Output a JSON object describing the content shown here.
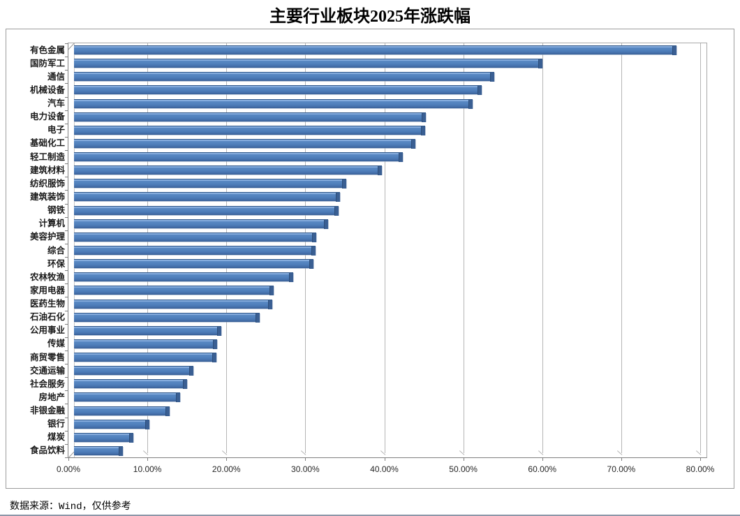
{
  "title": "主要行业板块2025年涨跌幅",
  "source_note": "数据来源：Wind，仅供参考",
  "chart_data": {
    "type": "bar",
    "orientation": "horizontal",
    "title": "主要行业板块2025年涨跌幅",
    "xlabel": "",
    "ylabel": "",
    "xlim": [
      0,
      80
    ],
    "grid": true,
    "legend": "none",
    "style": "excel-3d-bevel",
    "bar_color": "#4F81BD",
    "bar_cap_color": "#3A5F93",
    "gridline_color": "#B5B5B5",
    "x_ticks": [
      "0.00%",
      "10.00%",
      "20.00%",
      "30.00%",
      "40.00%",
      "50.00%",
      "60.00%",
      "70.00%",
      "80.00%"
    ],
    "value_unit": "percent",
    "categories": [
      "有色金属",
      "国防军工",
      "通信",
      "机械设备",
      "汽车",
      "电力设备",
      "电子",
      "基础化工",
      "轻工制造",
      "建筑材料",
      "纺织服饰",
      "建筑装饰",
      "钢铁",
      "计算机",
      "美容护理",
      "综合",
      "环保",
      "农林牧渔",
      "家用电器",
      "医药生物",
      "石油石化",
      "公用事业",
      "传媒",
      "商贸零售",
      "交通运输",
      "社会服务",
      "房地产",
      "非银金融",
      "银行",
      "煤炭",
      "食品饮料"
    ],
    "values": [
      76.6,
      59.7,
      53.6,
      52.0,
      50.8,
      44.9,
      44.8,
      43.6,
      42.0,
      39.3,
      34.8,
      34.0,
      33.9,
      32.5,
      31.0,
      30.9,
      30.7,
      28.1,
      25.6,
      25.5,
      23.9,
      19.0,
      18.5,
      18.4,
      15.5,
      14.7,
      13.8,
      12.5,
      9.9,
      7.9,
      6.5
    ]
  }
}
